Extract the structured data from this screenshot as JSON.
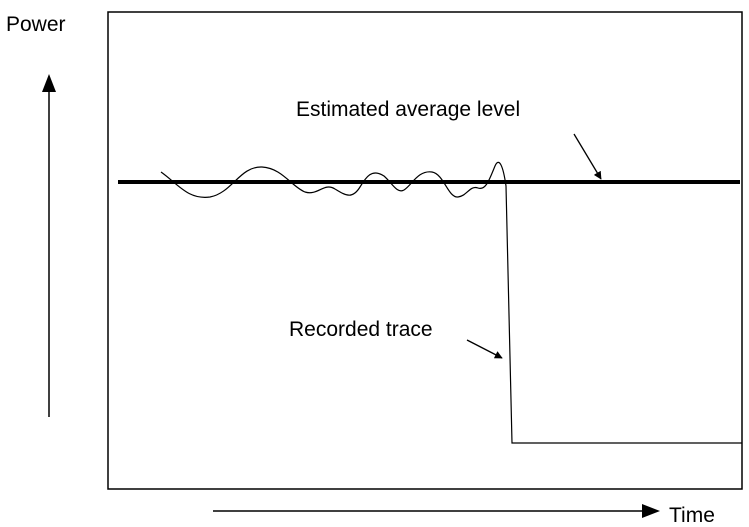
{
  "labels": {
    "y_axis": "Power",
    "x_axis": "Time",
    "average": "Estimated average level",
    "trace": "Recorded trace"
  }
}
